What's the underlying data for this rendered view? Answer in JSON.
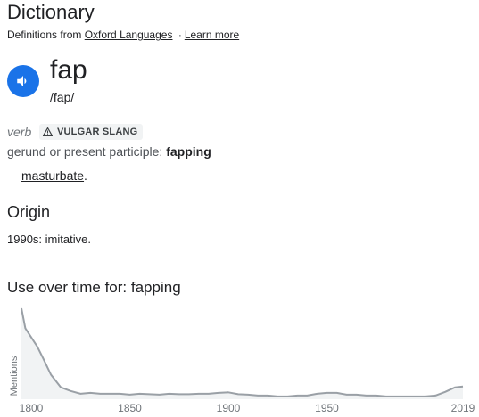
{
  "header": {
    "title": "Dictionary",
    "source_prefix": "Definitions from",
    "source_link": "Oxford Languages",
    "separator": "·",
    "learn_more": "Learn more"
  },
  "entry": {
    "word": "fap",
    "pronunciation": "/fap/",
    "audio_icon": "speaker-icon",
    "part_of_speech": "verb",
    "label_badge": "VULGAR SLANG",
    "label_icon": "warning-icon",
    "inflection_label": "gerund or present participle:",
    "inflection_value": "fapping",
    "definition_link": "masturbate",
    "definition_suffix": "."
  },
  "origin": {
    "title": "Origin",
    "text": "1990s: imitative."
  },
  "usage": {
    "title": "Use over time for: fapping"
  },
  "colors": {
    "accent": "#1a73e8",
    "line": "#9aa0a6",
    "fill": "#f1f3f4"
  },
  "chart_data": {
    "type": "area",
    "title": "Use over time for: fapping",
    "ylabel": "Mentions",
    "xlabel": "",
    "xlim": [
      1800,
      2019
    ],
    "x_ticks": [
      "1800",
      "1850",
      "1900",
      "1950",
      "2019"
    ],
    "x_tick_values": [
      1800,
      1850,
      1900,
      1950,
      2019
    ],
    "grid": false,
    "legend": "none",
    "x": [
      1795,
      1797,
      1800,
      1803,
      1806,
      1810,
      1815,
      1820,
      1825,
      1830,
      1835,
      1840,
      1845,
      1850,
      1855,
      1860,
      1865,
      1870,
      1875,
      1880,
      1885,
      1890,
      1895,
      1900,
      1905,
      1910,
      1915,
      1920,
      1925,
      1930,
      1935,
      1940,
      1945,
      1950,
      1955,
      1960,
      1965,
      1970,
      1975,
      1980,
      1985,
      1990,
      1995,
      2000,
      2005,
      2010,
      2015,
      2019
    ],
    "y": [
      1.0,
      0.78,
      0.68,
      0.58,
      0.45,
      0.27,
      0.13,
      0.09,
      0.06,
      0.07,
      0.06,
      0.06,
      0.06,
      0.05,
      0.06,
      0.055,
      0.05,
      0.06,
      0.055,
      0.055,
      0.06,
      0.06,
      0.07,
      0.075,
      0.055,
      0.05,
      0.04,
      0.04,
      0.03,
      0.03,
      0.04,
      0.04,
      0.06,
      0.07,
      0.07,
      0.05,
      0.05,
      0.04,
      0.04,
      0.03,
      0.03,
      0.03,
      0.03,
      0.03,
      0.04,
      0.08,
      0.13,
      0.14
    ]
  }
}
